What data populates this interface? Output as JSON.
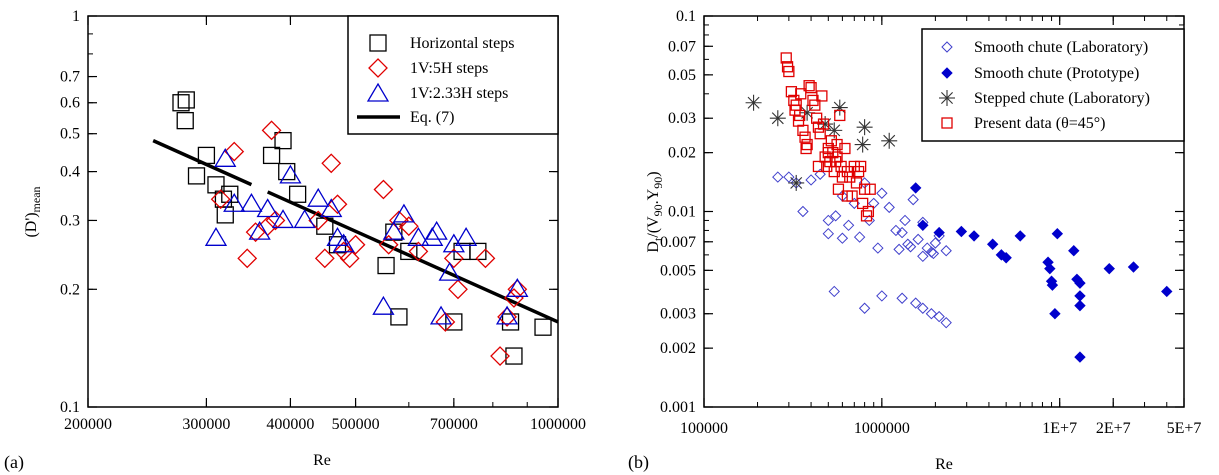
{
  "chart_data": [
    {
      "type": "scatter",
      "panel_label": "(a)",
      "xlabel": "Re",
      "ylabel_main": "(D')",
      "ylabel_sub": "mean",
      "xscale": "log",
      "yscale": "log",
      "xlim": [
        200000,
        1000000
      ],
      "ylim": [
        0.1,
        1
      ],
      "xticks": [
        200000,
        300000,
        400000,
        500000,
        700000,
        1000000
      ],
      "xtick_labels": [
        "200000",
        "300000",
        "400000",
        "500000",
        "700000",
        "1000000"
      ],
      "yticks": [
        0.1,
        0.2,
        0.3,
        0.4,
        0.5,
        0.6,
        0.7,
        1
      ],
      "ytick_labels": [
        "0.1",
        "0.2",
        "0.3",
        "0.4",
        "0.5",
        "0.6",
        "0.7",
        "1"
      ],
      "legend_position": "top-right",
      "series": [
        {
          "name": "Horizontal steps",
          "marker": "square",
          "color": "#000000",
          "points": [
            [
              275000,
              0.6
            ],
            [
              280000,
              0.61
            ],
            [
              279000,
              0.54
            ],
            [
              290000,
              0.39
            ],
            [
              300000,
              0.44
            ],
            [
              310000,
              0.37
            ],
            [
              318000,
              0.34
            ],
            [
              320000,
              0.31
            ],
            [
              325000,
              0.35
            ],
            [
              375000,
              0.44
            ],
            [
              390000,
              0.48
            ],
            [
              395000,
              0.4
            ],
            [
              410000,
              0.35
            ],
            [
              450000,
              0.29
            ],
            [
              470000,
              0.26
            ],
            [
              555000,
              0.23
            ],
            [
              570000,
              0.28
            ],
            [
              580000,
              0.17
            ],
            [
              600000,
              0.25
            ],
            [
              700000,
              0.165
            ],
            [
              720000,
              0.25
            ],
            [
              760000,
              0.25
            ],
            [
              850000,
              0.165
            ],
            [
              860000,
              0.135
            ],
            [
              950000,
              0.16
            ]
          ]
        },
        {
          "name": "1V:5H steps",
          "marker": "diamond",
          "color": "#e00000",
          "points": [
            [
              315000,
              0.34
            ],
            [
              330000,
              0.45
            ],
            [
              345000,
              0.24
            ],
            [
              355000,
              0.28
            ],
            [
              370000,
              0.29
            ],
            [
              375000,
              0.51
            ],
            [
              380000,
              0.3
            ],
            [
              440000,
              0.3
            ],
            [
              450000,
              0.24
            ],
            [
              460000,
              0.42
            ],
            [
              470000,
              0.33
            ],
            [
              480000,
              0.25
            ],
            [
              490000,
              0.24
            ],
            [
              500000,
              0.26
            ],
            [
              550000,
              0.36
            ],
            [
              560000,
              0.26
            ],
            [
              580000,
              0.3
            ],
            [
              600000,
              0.29
            ],
            [
              620000,
              0.25
            ],
            [
              680000,
              0.165
            ],
            [
              700000,
              0.24
            ],
            [
              710000,
              0.2
            ],
            [
              780000,
              0.24
            ],
            [
              820000,
              0.135
            ],
            [
              840000,
              0.17
            ],
            [
              860000,
              0.19
            ],
            [
              870000,
              0.2
            ]
          ]
        },
        {
          "name": "1V:2.33H steps",
          "marker": "triangle",
          "color": "#0000cc",
          "points": [
            [
              310000,
              0.27
            ],
            [
              320000,
              0.43
            ],
            [
              330000,
              0.33
            ],
            [
              350000,
              0.33
            ],
            [
              360000,
              0.28
            ],
            [
              370000,
              0.32
            ],
            [
              390000,
              0.3
            ],
            [
              400000,
              0.39
            ],
            [
              420000,
              0.3
            ],
            [
              440000,
              0.34
            ],
            [
              460000,
              0.32
            ],
            [
              470000,
              0.27
            ],
            [
              480000,
              0.26
            ],
            [
              550000,
              0.18
            ],
            [
              570000,
              0.28
            ],
            [
              590000,
              0.31
            ],
            [
              620000,
              0.27
            ],
            [
              650000,
              0.27
            ],
            [
              660000,
              0.28
            ],
            [
              670000,
              0.17
            ],
            [
              690000,
              0.22
            ],
            [
              700000,
              0.26
            ],
            [
              730000,
              0.27
            ],
            [
              840000,
              0.17
            ],
            [
              870000,
              0.2
            ]
          ]
        }
      ],
      "line": {
        "name": "Eq. (7)",
        "color": "#000000",
        "points": [
          [
            250000,
            0.48
          ],
          [
            1000000,
            0.165
          ]
        ],
        "break_after_x": 350000,
        "resume_at_x": 370000
      }
    },
    {
      "type": "scatter",
      "panel_label": "(b)",
      "xlabel": "Re",
      "ylabel_main": "D",
      "ylabel_sub1": "t",
      "ylabel_mid": "/(V",
      "ylabel_sub2": "90",
      "ylabel_mid2": ".Y",
      "ylabel_sub3": "90",
      "ylabel_end": ")",
      "xscale": "log",
      "yscale": "log",
      "xlim": [
        100000,
        50000000
      ],
      "ylim": [
        0.001,
        0.1
      ],
      "xticks": [
        100000,
        1000000,
        10000000,
        20000000,
        50000000
      ],
      "xtick_labels": [
        "100000",
        "1000000",
        "1E+7",
        "2E+7",
        "5E+7"
      ],
      "yticks": [
        0.001,
        0.002,
        0.003,
        0.005,
        0.007,
        0.01,
        0.02,
        0.03,
        0.05,
        0.07,
        0.1
      ],
      "ytick_labels": [
        "0.001",
        "0.002",
        "0.003",
        "0.005",
        "0.007",
        "0.01",
        "0.02",
        "0.03",
        "0.05",
        "0.07",
        "0.1"
      ],
      "legend_position": "top-right",
      "series": [
        {
          "name": "Smooth chute (Laboratory)",
          "marker": "diamond-open",
          "color": "#4040cc",
          "points": [
            [
              260000,
              0.015
            ],
            [
              300000,
              0.015
            ],
            [
              330000,
              0.014
            ],
            [
              360000,
              0.01
            ],
            [
              400000,
              0.0145
            ],
            [
              450000,
              0.0155
            ],
            [
              500000,
              0.009
            ],
            [
              550000,
              0.0095
            ],
            [
              600000,
              0.012
            ],
            [
              650000,
              0.0085
            ],
            [
              700000,
              0.011
            ],
            [
              750000,
              0.0074
            ],
            [
              800000,
              0.014
            ],
            [
              850000,
              0.009
            ],
            [
              900000,
              0.011
            ],
            [
              950000,
              0.0065
            ],
            [
              1000000,
              0.0124
            ],
            [
              1100000,
              0.0105
            ],
            [
              1200000,
              0.008
            ],
            [
              1300000,
              0.0078
            ],
            [
              1350000,
              0.009
            ],
            [
              1400000,
              0.0068
            ],
            [
              1500000,
              0.0115
            ],
            [
              1600000,
              0.0072
            ],
            [
              1700000,
              0.0088
            ],
            [
              1800000,
              0.0065
            ],
            [
              1900000,
              0.0062
            ],
            [
              2000000,
              0.0069
            ],
            [
              2100000,
              0.0075
            ],
            [
              2300000,
              0.0063
            ],
            [
              540000,
              0.0039
            ],
            [
              800000,
              0.0032
            ],
            [
              1000000,
              0.0037
            ],
            [
              1300000,
              0.0036
            ],
            [
              1550000,
              0.0034
            ],
            [
              1700000,
              0.0032
            ],
            [
              1900000,
              0.003
            ],
            [
              2100000,
              0.0029
            ],
            [
              2300000,
              0.0027
            ],
            [
              500000,
              0.0077
            ],
            [
              600000,
              0.0073
            ],
            [
              1250000,
              0.0064
            ],
            [
              1450000,
              0.0066
            ],
            [
              1700000,
              0.0059
            ],
            [
              1950000,
              0.0061
            ]
          ]
        },
        {
          "name": "Smooth chute (Prototype)",
          "marker": "diamond-filled",
          "color": "#0000cc",
          "points": [
            [
              1550000,
              0.0132
            ],
            [
              1700000,
              0.0085
            ],
            [
              2100000,
              0.0078
            ],
            [
              2800000,
              0.0079
            ],
            [
              3300000,
              0.0075
            ],
            [
              4200000,
              0.0068
            ],
            [
              4700000,
              0.006
            ],
            [
              5000000,
              0.0058
            ],
            [
              6000000,
              0.0075
            ],
            [
              8600000,
              0.0055
            ],
            [
              8800000,
              0.0051
            ],
            [
              9000000,
              0.0044
            ],
            [
              9100000,
              0.0042
            ],
            [
              9400000,
              0.003
            ],
            [
              9700000,
              0.0077
            ],
            [
              12000000,
              0.0063
            ],
            [
              12500000,
              0.0045
            ],
            [
              13000000,
              0.0043
            ],
            [
              13000000,
              0.0037
            ],
            [
              13000000,
              0.0033
            ],
            [
              13000000,
              0.0018
            ],
            [
              19000000,
              0.0051
            ],
            [
              26000000,
              0.0052
            ],
            [
              40000000,
              0.0039
            ]
          ]
        },
        {
          "name": "Stepped chute (Laboratory)",
          "marker": "asterisk",
          "color": "#333333",
          "points": [
            [
              190000,
              0.036
            ],
            [
              260000,
              0.03
            ],
            [
              330000,
              0.014
            ],
            [
              380000,
              0.032
            ],
            [
              480000,
              0.028
            ],
            [
              540000,
              0.026
            ],
            [
              580000,
              0.034
            ],
            [
              780000,
              0.022
            ],
            [
              800000,
              0.027
            ],
            [
              1100000,
              0.023
            ]
          ]
        },
        {
          "name": "Present data (θ=45°)",
          "marker": "square",
          "color": "#e00000",
          "points": [
            [
              290000,
              0.061
            ],
            [
              295000,
              0.055
            ],
            [
              300000,
              0.052
            ],
            [
              310000,
              0.041
            ],
            [
              320000,
              0.037
            ],
            [
              325000,
              0.033
            ],
            [
              330000,
              0.035
            ],
            [
              340000,
              0.029
            ],
            [
              345000,
              0.031
            ],
            [
              350000,
              0.04
            ],
            [
              360000,
              0.026
            ],
            [
              370000,
              0.024
            ],
            [
              375000,
              0.021
            ],
            [
              380000,
              0.022
            ],
            [
              390000,
              0.044
            ],
            [
              400000,
              0.043
            ],
            [
              410000,
              0.037
            ],
            [
              420000,
              0.035
            ],
            [
              430000,
              0.03
            ],
            [
              440000,
              0.027
            ],
            [
              450000,
              0.025
            ],
            [
              460000,
              0.039
            ],
            [
              470000,
              0.028
            ],
            [
              480000,
              0.019
            ],
            [
              490000,
              0.017
            ],
            [
              500000,
              0.02
            ],
            [
              510000,
              0.018
            ],
            [
              520000,
              0.023
            ],
            [
              530000,
              0.02
            ],
            [
              540000,
              0.016
            ],
            [
              550000,
              0.018
            ],
            [
              560000,
              0.022
            ],
            [
              570000,
              0.013
            ],
            [
              580000,
              0.031
            ],
            [
              590000,
              0.017
            ],
            [
              600000,
              0.015
            ],
            [
              620000,
              0.021
            ],
            [
              640000,
              0.016
            ],
            [
              660000,
              0.015
            ],
            [
              680000,
              0.012
            ],
            [
              700000,
              0.017
            ],
            [
              720000,
              0.014
            ],
            [
              740000,
              0.016
            ],
            [
              760000,
              0.017
            ],
            [
              780000,
              0.011
            ],
            [
              800000,
              0.013
            ],
            [
              820000,
              0.0095
            ],
            [
              840000,
              0.01
            ],
            [
              860000,
              0.013
            ],
            [
              440000,
              0.017
            ],
            [
              500000,
              0.021
            ],
            [
              560000,
              0.019
            ],
            [
              640000,
              0.012
            ]
          ]
        }
      ]
    }
  ]
}
